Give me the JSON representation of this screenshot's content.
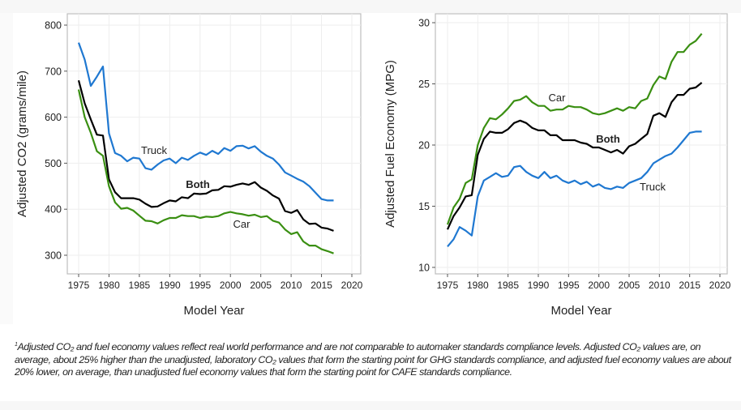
{
  "chart_data": [
    {
      "type": "line",
      "ylabel": "Adjusted CO2 (grams/mile)",
      "xlabel": "Model Year",
      "xlim": [
        1975,
        2020
      ],
      "ylim": [
        270,
        820
      ],
      "xticks": [
        1975,
        1980,
        1985,
        1990,
        1995,
        2000,
        2005,
        2010,
        2015,
        2020
      ],
      "yticks": [
        300,
        400,
        500,
        600,
        700,
        800
      ],
      "grid": true,
      "x_start": 1975,
      "series": [
        {
          "name": "Truck",
          "color": "#1f78d1",
          "values": [
            762,
            725,
            668,
            688,
            710,
            565,
            522,
            516,
            504,
            512,
            510,
            489,
            486,
            497,
            506,
            510,
            500,
            512,
            507,
            516,
            523,
            518,
            527,
            520,
            533,
            527,
            537,
            538,
            532,
            537,
            525,
            516,
            510,
            497,
            480,
            473,
            466,
            460,
            450,
            436,
            422,
            419,
            419
          ]
        },
        {
          "name": "Both",
          "color": "#000000",
          "bold": true,
          "values": [
            680,
            630,
            595,
            562,
            560,
            465,
            437,
            424,
            424,
            424,
            421,
            412,
            405,
            406,
            413,
            419,
            417,
            426,
            424,
            434,
            433,
            434,
            441,
            442,
            450,
            449,
            453,
            456,
            453,
            459,
            447,
            440,
            430,
            423,
            396,
            392,
            398,
            378,
            368,
            369,
            360,
            358,
            353
          ]
        },
        {
          "name": "Car",
          "color": "#3a8f12",
          "values": [
            660,
            600,
            566,
            526,
            516,
            450,
            415,
            401,
            403,
            397,
            386,
            375,
            374,
            369,
            376,
            381,
            381,
            387,
            385,
            385,
            381,
            384,
            383,
            385,
            391,
            394,
            391,
            389,
            386,
            388,
            383,
            385,
            375,
            371,
            356,
            346,
            350,
            330,
            321,
            321,
            313,
            309,
            304
          ]
        }
      ]
    },
    {
      "type": "line",
      "ylabel": "Adjusted Fuel Economy (MPG)",
      "xlabel": "Model Year",
      "xlim": [
        1975,
        2020
      ],
      "ylim": [
        9.5,
        30.5
      ],
      "xticks": [
        1975,
        1980,
        1985,
        1990,
        1995,
        2000,
        2005,
        2010,
        2015,
        2020
      ],
      "yticks": [
        10,
        15,
        20,
        25,
        30
      ],
      "grid": true,
      "x_start": 1975,
      "series": [
        {
          "name": "Car",
          "color": "#3a8f12",
          "values": [
            13.5,
            14.9,
            15.6,
            16.9,
            17.2,
            20.0,
            21.4,
            22.2,
            22.1,
            22.5,
            23.0,
            23.6,
            23.7,
            24.0,
            23.5,
            23.2,
            23.2,
            22.8,
            22.9,
            22.9,
            23.2,
            23.1,
            23.1,
            22.9,
            22.6,
            22.5,
            22.6,
            22.8,
            23.0,
            22.8,
            23.1,
            23.0,
            23.6,
            23.8,
            24.9,
            25.6,
            25.4,
            26.8,
            27.6,
            27.6,
            28.2,
            28.5,
            29.1
          ]
        },
        {
          "name": "Both",
          "color": "#000000",
          "bold": true,
          "values": [
            13.1,
            14.2,
            14.9,
            15.8,
            15.9,
            19.2,
            20.5,
            21.1,
            21.0,
            21.0,
            21.3,
            21.8,
            22.0,
            21.8,
            21.4,
            21.2,
            21.2,
            20.8,
            20.8,
            20.4,
            20.4,
            20.4,
            20.2,
            20.1,
            19.8,
            19.8,
            19.6,
            19.4,
            19.6,
            19.3,
            19.9,
            20.1,
            20.5,
            20.9,
            22.4,
            22.6,
            22.3,
            23.5,
            24.1,
            24.1,
            24.6,
            24.7,
            25.1
          ]
        },
        {
          "name": "Truck",
          "color": "#1f78d1",
          "values": [
            11.7,
            12.3,
            13.3,
            13.0,
            12.6,
            15.8,
            17.1,
            17.4,
            17.7,
            17.4,
            17.5,
            18.2,
            18.3,
            17.8,
            17.5,
            17.3,
            17.8,
            17.3,
            17.5,
            17.1,
            16.9,
            17.1,
            16.8,
            17.0,
            16.6,
            16.8,
            16.5,
            16.4,
            16.6,
            16.5,
            16.9,
            17.1,
            17.3,
            17.8,
            18.5,
            18.8,
            19.1,
            19.3,
            19.8,
            20.4,
            21.0,
            21.1,
            21.1
          ]
        }
      ]
    }
  ],
  "footnote": {
    "sup": "1",
    "text": "Adjusted CO₂ and fuel economy values reflect real world performance and are not comparable to automaker standards compliance levels. Adjusted CO₂ values are, on average, about 25% higher than the unadjusted, laboratory CO₂ values that form the starting point for GHG standards compliance, and adjusted fuel economy values are about 20% lower, on average, than unadjusted fuel economy values that form the starting point for CAFE standards compliance."
  }
}
